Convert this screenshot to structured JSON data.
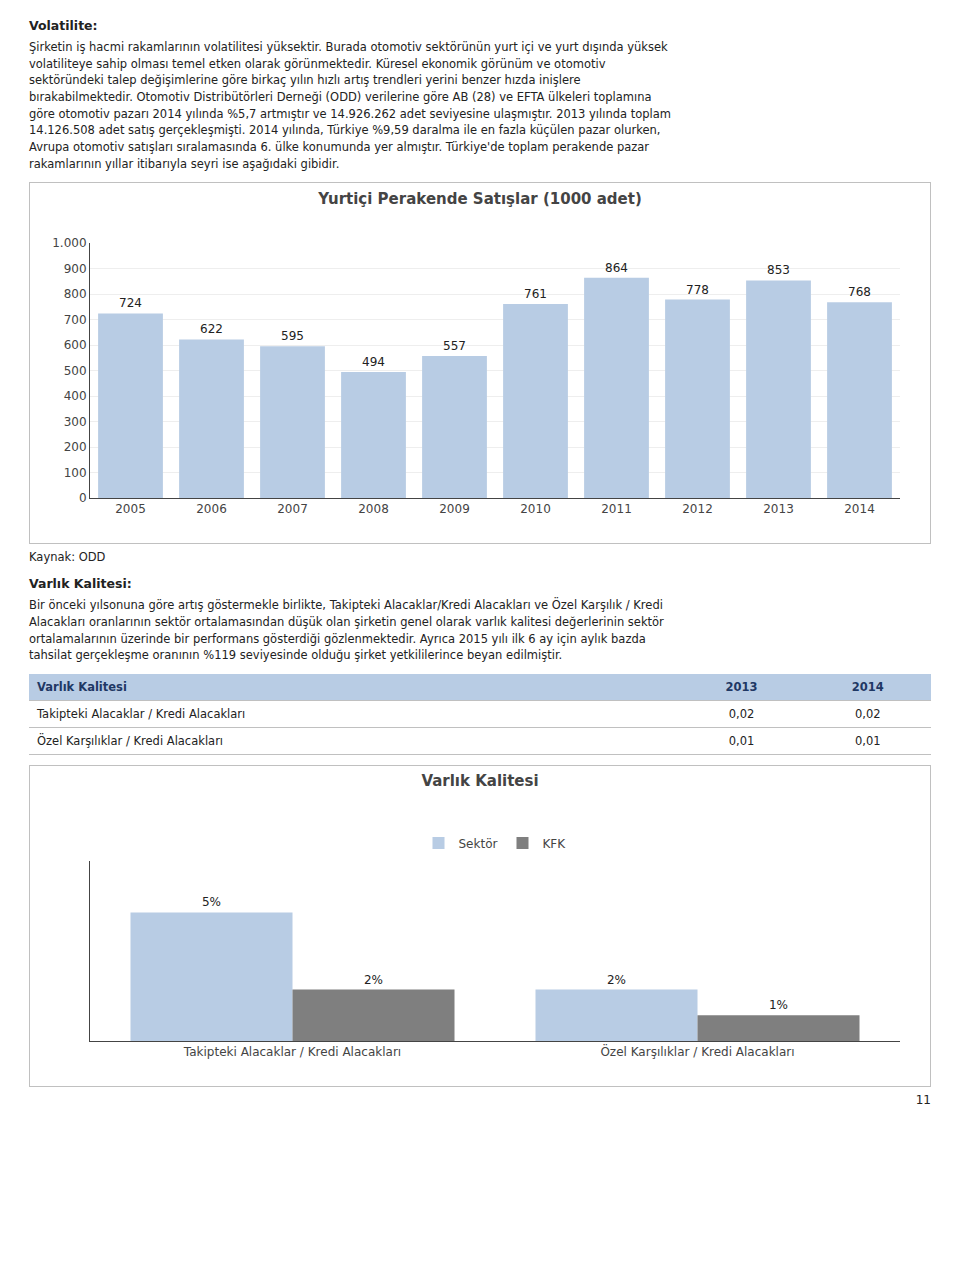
{
  "chart_data": [
    {
      "type": "bar",
      "title": "Yurtiçi Perakende Satışlar (1000 adet)",
      "categories": [
        "2005",
        "2006",
        "2007",
        "2008",
        "2009",
        "2010",
        "2011",
        "2012",
        "2013",
        "2014"
      ],
      "values": [
        724,
        622,
        595,
        494,
        557,
        761,
        864,
        778,
        853,
        768
      ],
      "color": "#b8cce4",
      "ylim": [
        0,
        1000
      ],
      "yticks": [
        0,
        100,
        200,
        300,
        400,
        500,
        600,
        700,
        800,
        900,
        {
          "value": 1000,
          "label": "1.000"
        }
      ],
      "grid": true,
      "data_labels": true
    },
    {
      "type": "bar",
      "title": "Varlık Kalitesi",
      "categories": [
        "Takipteki Alacaklar / Kredi Alacakları",
        "Özel Karşılıklar / Kredi Alacakları"
      ],
      "series": [
        {
          "name": "Sektör",
          "color": "#b8cce4",
          "values": [
            5,
            2
          ],
          "value_labels": [
            "5%",
            "2%"
          ]
        },
        {
          "name": "KFK",
          "color": "#7f7f7f",
          "values": [
            2,
            1
          ],
          "value_labels": [
            "2%",
            "1%"
          ]
        }
      ],
      "ylim": [
        0,
        7
      ],
      "grid": false,
      "legend": "top",
      "tick_labels": "x",
      "data_labels": true
    }
  ],
  "sections": [
    {
      "title": "Volatilite:",
      "text": "Şirketin iş hacmi rakamlarının volatilitesi yüksektir. Burada otomotiv sektörünün yurt içi ve yurt dışında yüksek\nvolatiliteye sahip olması temel etken olarak görünmektedir. Küresel ekonomik görünüm ve otomotiv\nsektöründeki talep değişimlerine göre birkaç yılın hızlı artış trendleri yerini benzer hızda inişlere\nbırakabilmektedir. Otomotiv Distribütörleri Derneği (ODD) verilerine göre AB (28) ve EFTA ülkeleri toplamına\ngöre otomotiv pazarı 2014 yılında %5,7 artmıştır ve 14.926.262 adet seviyesine ulaşmıştır. 2013 yılında toplam\n14.126.508 adet satış gerçekleşmişti. 2014 yılında, Türkiye %9,59 daralma ile en fazla küçülen pazar olurken,\nAvrupa otomotiv satışları sıralamasında 6. ülke konumunda yer almıştır. Türkiye'de toplam perakende pazar\nrakamlarının yıllar itibarıyla seyri ise aşağıdaki gibidir."
    },
    {
      "title": "Varlık Kalitesi:",
      "text": "Bir önceki yılsonuna göre artış göstermekle birlikte, Takipteki Alacaklar/Kredi Alacakları ve Özel Karşılık / Kredi\nAlacakları oranlarının sektör ortalamasından düşük olan şirketin genel olarak varlık kalitesi değerlerinin sektör\nortalamalarının üzerinde bir performans gösterdiği gözlenmektedir.  Ayrıca 2015 yılı ilk 6 ay için aylık bazda\ntahsilat gerçekleşme oranının %119 seviyesinde olduğu şirket yetkililerince beyan edilmiştir."
    }
  ],
  "source": "Kaynak: ODD",
  "table": {
    "header": [
      "Varlık Kalitesi",
      "2013",
      "2014"
    ],
    "rows": [
      [
        "Takipteki Alacaklar / Kredi Alacakları",
        "0,02",
        "0,02"
      ],
      [
        "Özel Karşılıklar / Kredi Alacakları",
        "0,01",
        "0,01"
      ]
    ],
    "color": "#b8cce4",
    "text_color": "#1f3864"
  },
  "page_number": "11"
}
